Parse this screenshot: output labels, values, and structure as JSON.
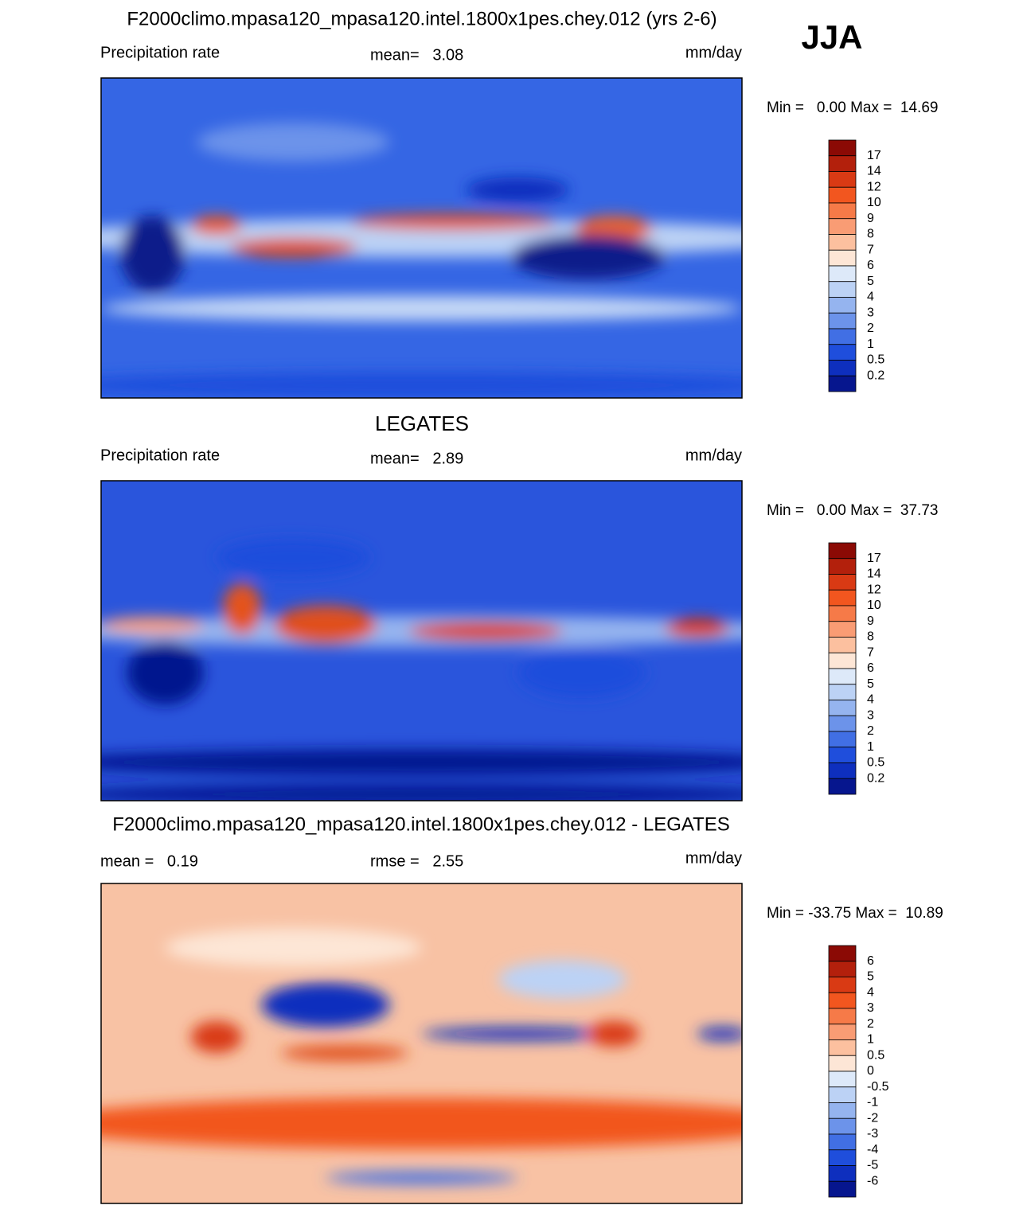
{
  "header": {
    "season": "JJA"
  },
  "panels": [
    {
      "title": "F2000climo.mpasa120_mpasa120.intel.1800x1pes.chey.012 (yrs 2-6)",
      "left": "Precipitation rate",
      "center": "mean=   3.08",
      "right": "mm/day",
      "range": "Min =   0.00 Max =  14.69",
      "colorbar": {
        "labels": [
          "17",
          "14",
          "12",
          "10",
          "9",
          "8",
          "7",
          "6",
          "5",
          "4",
          "3",
          "2",
          "1",
          "0.5",
          "0.2"
        ],
        "colors": [
          "#8b0a05",
          "#b3200c",
          "#d93a14",
          "#f2561f",
          "#f67a48",
          "#f99c74",
          "#fcc09f",
          "#fde6d6",
          "#dde9f9",
          "#bcd2f5",
          "#95b4ef",
          "#6c93ea",
          "#416fe4",
          "#1f4edc",
          "#0e2fbe",
          "#06168e"
        ]
      }
    },
    {
      "title": "LEGATES",
      "left": "Precipitation rate",
      "center": "mean=   2.89",
      "right": "mm/day",
      "range": "Min =   0.00 Max =  37.73",
      "colorbar": {
        "labels": [
          "17",
          "14",
          "12",
          "10",
          "9",
          "8",
          "7",
          "6",
          "5",
          "4",
          "3",
          "2",
          "1",
          "0.5",
          "0.2"
        ],
        "colors": [
          "#8b0a05",
          "#b3200c",
          "#d93a14",
          "#f2561f",
          "#f67a48",
          "#f99c74",
          "#fcc09f",
          "#fde6d6",
          "#dde9f9",
          "#bcd2f5",
          "#95b4ef",
          "#6c93ea",
          "#416fe4",
          "#1f4edc",
          "#0e2fbe",
          "#06168e"
        ]
      }
    },
    {
      "title": "F2000climo.mpasa120_mpasa120.intel.1800x1pes.chey.012 - LEGATES",
      "left": "mean =   0.19",
      "center": "rmse =   2.55",
      "right": "mm/day",
      "range": "Min = -33.75 Max =  10.89",
      "colorbar": {
        "labels": [
          "6",
          "5",
          "4",
          "3",
          "2",
          "1",
          "0.5",
          "0",
          "-0.5",
          "-1",
          "-2",
          "-3",
          "-4",
          "-5",
          "-6"
        ],
        "colors": [
          "#8b0a05",
          "#b3200c",
          "#d93a14",
          "#f2561f",
          "#f67a48",
          "#f99c74",
          "#fcc09f",
          "#fde6d6",
          "#dde9f9",
          "#bcd2f5",
          "#95b4ef",
          "#6c93ea",
          "#416fe4",
          "#1f4edc",
          "#0e2fbe",
          "#06168e"
        ]
      }
    }
  ]
}
